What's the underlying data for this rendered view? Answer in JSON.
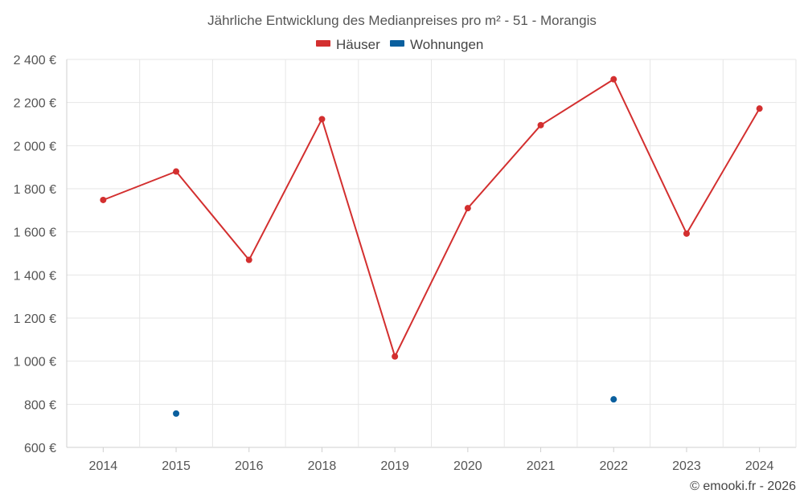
{
  "chart_data": {
    "type": "line",
    "title": "Jährliche Entwicklung des Medianpreises pro m² - 51 - Morangis",
    "categories": [
      "2014",
      "2015",
      "2016",
      "2018",
      "2019",
      "2020",
      "2021",
      "2022",
      "2023",
      "2024"
    ],
    "series": [
      {
        "name": "Häuser",
        "color": "#d32f2f",
        "values": [
          1748,
          1880,
          1470,
          2123,
          1022,
          1710,
          2095,
          2308,
          1592,
          2172
        ]
      },
      {
        "name": "Wohnungen",
        "color": "#0a5f9e",
        "values": [
          null,
          757,
          null,
          null,
          null,
          null,
          null,
          823,
          null,
          null
        ]
      }
    ],
    "ylim": [
      600,
      2400
    ],
    "yticks": [
      600,
      800,
      1000,
      1200,
      1400,
      1600,
      1800,
      2000,
      2200,
      2400
    ],
    "ytick_labels": [
      "600 €",
      "800 €",
      "1 000 €",
      "1 200 €",
      "1 400 €",
      "1 600 €",
      "1 800 €",
      "2 000 €",
      "2 200 €",
      "2 400 €"
    ],
    "xlabel": "",
    "ylabel": "",
    "legend_position": "top-center",
    "grid": true
  },
  "credit": "© emooki.fr - 2026"
}
